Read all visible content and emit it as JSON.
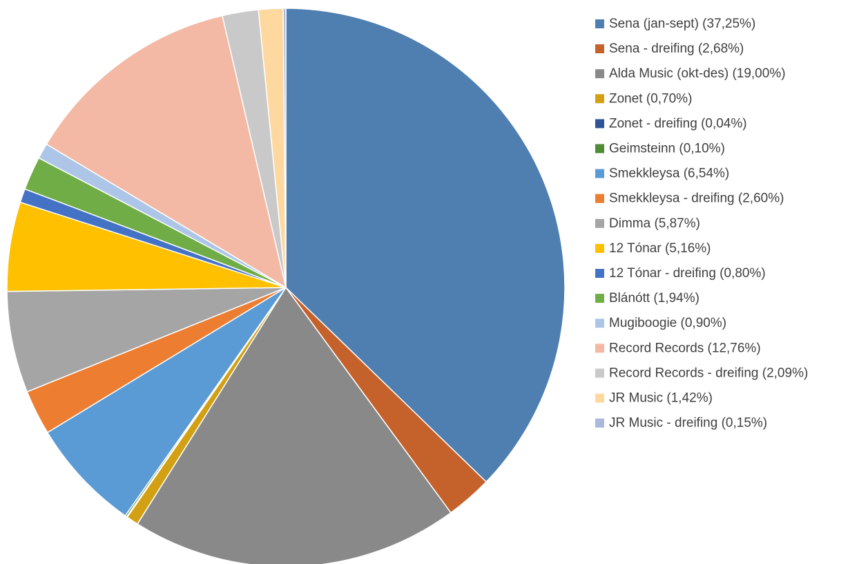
{
  "chart_data": {
    "type": "pie",
    "categories": [
      "Sena (jan-sept) (37,25%)",
      "Sena - dreifing (2,68%)",
      "Alda Music (okt-des) (19,00%)",
      "Zonet (0,70%)",
      "Zonet - dreifing (0,04%)",
      "Geimsteinn (0,10%)",
      "Smekkleysa (6,54%)",
      "Smekkleysa - dreifing (2,60%)",
      "Dimma (5,87%)",
      "12 Tónar (5,16%)",
      "12 Tónar - dreifing (0,80%)",
      "Blánótt (1,94%)",
      "Mugiboogie (0,90%)",
      "Record Records (12,76%)",
      "Record Records - dreifing (2,09%)",
      "JR Music (1,42%)",
      "JR Music - dreifing (0,15%)"
    ],
    "values": [
      37.25,
      2.68,
      19.0,
      0.7,
      0.04,
      0.1,
      6.54,
      2.6,
      5.87,
      5.16,
      0.8,
      1.94,
      0.9,
      12.76,
      2.09,
      1.42,
      0.15
    ],
    "colors": [
      "#4e7fb0",
      "#c5622b",
      "#898989",
      "#d2a012",
      "#2f5597",
      "#4f8a35",
      "#5b9bd5",
      "#ed7d31",
      "#a5a5a5",
      "#ffc000",
      "#4472c4",
      "#70ad47",
      "#adc6e8",
      "#f4b9a5",
      "#c9c9c9",
      "#ffd8a0",
      "#a9b8dc"
    ],
    "legend": "right"
  }
}
